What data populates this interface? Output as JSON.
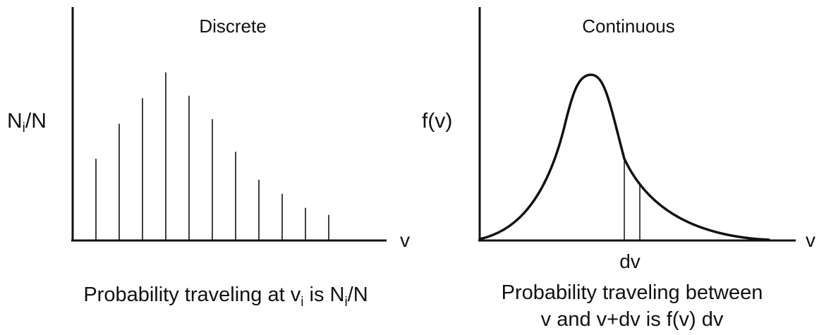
{
  "discrete": {
    "title": "Discrete",
    "ylabel_main": "N",
    "ylabel_sub": "i",
    "ylabel_rest": "/N",
    "xlabel": "v",
    "caption": {
      "p1": "Probability traveling at v",
      "s1": "i",
      "p2": " is N",
      "s2": "i",
      "p3": "/N"
    },
    "bars": [
      0.35,
      0.5,
      0.61,
      0.72,
      0.62,
      0.52,
      0.38,
      0.26,
      0.2,
      0.14,
      0.11
    ]
  },
  "continuous": {
    "title": "Continuous",
    "ylabel": "f(v)",
    "xlabel": "v",
    "dv_label": "dv",
    "caption_line1": "Probability traveling between",
    "caption_line2": "v and v+dv is f(v) dv"
  },
  "colors": {
    "ink": "#111111",
    "background": "#ffffff"
  }
}
